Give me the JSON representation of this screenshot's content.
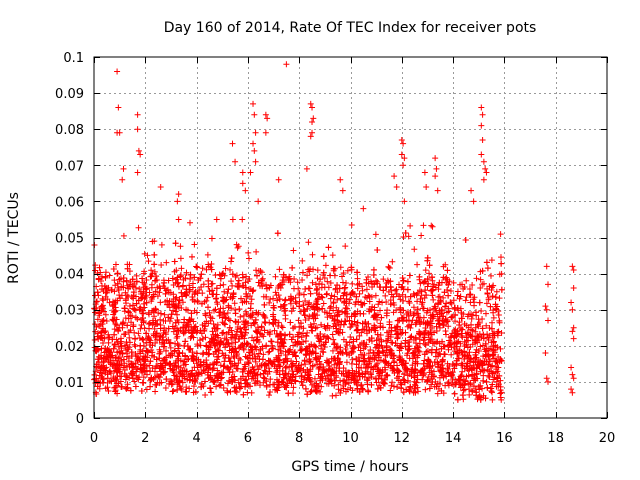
{
  "chart_data": {
    "type": "scatter",
    "title": "Day 160 of 2014, Rate Of TEC Index for receiver pots",
    "xlabel": "GPS time / hours",
    "ylabel": "ROTI / TECUs",
    "xlim": [
      0,
      20
    ],
    "ylim": [
      0,
      0.1
    ],
    "x_ticks": [
      0,
      2,
      4,
      6,
      8,
      10,
      12,
      14,
      16,
      18,
      20
    ],
    "y_ticks": [
      0,
      0.01,
      0.02,
      0.03,
      0.04,
      0.05,
      0.06,
      0.07,
      0.08,
      0.09,
      0.1
    ],
    "x_tick_labels": [
      "0",
      "2",
      "4",
      "6",
      "8",
      "10",
      "12",
      "14",
      "16",
      "18",
      "20"
    ],
    "y_tick_labels": [
      "0",
      "0.01",
      "0.02",
      "0.03",
      "0.04",
      "0.05",
      "0.06",
      "0.07",
      "0.08",
      "0.09",
      "0.1"
    ],
    "grid": true,
    "marker": "+",
    "series": [
      {
        "name": "ROTI",
        "color": "#ff0000",
        "dense_band": {
          "x_range": [
            0,
            15.9
          ],
          "y_range": [
            0.003,
            0.055
          ],
          "approx_points": 4500
        },
        "points": [
          [
            0.9,
            0.096
          ],
          [
            0.95,
            0.086
          ],
          [
            0.9,
            0.079
          ],
          [
            1.0,
            0.079
          ],
          [
            1.15,
            0.069
          ],
          [
            1.1,
            0.066
          ],
          [
            1.7,
            0.084
          ],
          [
            1.7,
            0.08
          ],
          [
            1.75,
            0.074
          ],
          [
            1.8,
            0.073
          ],
          [
            1.7,
            0.068
          ],
          [
            2.6,
            0.064
          ],
          [
            3.3,
            0.062
          ],
          [
            3.25,
            0.06
          ],
          [
            3.3,
            0.055
          ],
          [
            5.4,
            0.076
          ],
          [
            5.5,
            0.071
          ],
          [
            5.8,
            0.068
          ],
          [
            5.8,
            0.065
          ],
          [
            5.9,
            0.063
          ],
          [
            6.2,
            0.087
          ],
          [
            6.25,
            0.084
          ],
          [
            6.3,
            0.079
          ],
          [
            6.2,
            0.076
          ],
          [
            6.25,
            0.074
          ],
          [
            6.3,
            0.071
          ],
          [
            6.1,
            0.068
          ],
          [
            6.4,
            0.06
          ],
          [
            6.7,
            0.084
          ],
          [
            6.75,
            0.083
          ],
          [
            6.7,
            0.079
          ],
          [
            7.2,
            0.066
          ],
          [
            7.5,
            0.098
          ],
          [
            8.3,
            0.069
          ],
          [
            8.45,
            0.087
          ],
          [
            8.5,
            0.086
          ],
          [
            8.55,
            0.083
          ],
          [
            8.5,
            0.082
          ],
          [
            8.5,
            0.079
          ],
          [
            8.45,
            0.078
          ],
          [
            9.6,
            0.066
          ],
          [
            9.7,
            0.063
          ],
          [
            10.5,
            0.058
          ],
          [
            11.7,
            0.067
          ],
          [
            11.8,
            0.064
          ],
          [
            12.0,
            0.077
          ],
          [
            12.05,
            0.076
          ],
          [
            12.0,
            0.073
          ],
          [
            12.1,
            0.072
          ],
          [
            12.05,
            0.07
          ],
          [
            12.1,
            0.06
          ],
          [
            12.9,
            0.068
          ],
          [
            12.95,
            0.064
          ],
          [
            13.3,
            0.072
          ],
          [
            13.35,
            0.069
          ],
          [
            13.3,
            0.067
          ],
          [
            13.4,
            0.063
          ],
          [
            14.7,
            0.063
          ],
          [
            14.8,
            0.06
          ],
          [
            15.1,
            0.086
          ],
          [
            15.15,
            0.084
          ],
          [
            15.1,
            0.081
          ],
          [
            15.15,
            0.077
          ],
          [
            15.1,
            0.073
          ],
          [
            15.2,
            0.071
          ],
          [
            15.25,
            0.069
          ],
          [
            15.3,
            0.068
          ],
          [
            15.2,
            0.066
          ],
          [
            17.65,
            0.042
          ],
          [
            17.7,
            0.037
          ],
          [
            17.6,
            0.031
          ],
          [
            17.65,
            0.03
          ],
          [
            17.7,
            0.027
          ],
          [
            17.6,
            0.018
          ],
          [
            17.65,
            0.011
          ],
          [
            17.7,
            0.01
          ],
          [
            18.65,
            0.042
          ],
          [
            18.7,
            0.041
          ],
          [
            18.7,
            0.036
          ],
          [
            18.6,
            0.032
          ],
          [
            18.65,
            0.03
          ],
          [
            18.7,
            0.025
          ],
          [
            18.65,
            0.024
          ],
          [
            18.7,
            0.022
          ],
          [
            18.6,
            0.014
          ],
          [
            18.65,
            0.012
          ],
          [
            18.7,
            0.011
          ],
          [
            18.6,
            0.008
          ],
          [
            18.65,
            0.007
          ]
        ]
      }
    ]
  }
}
